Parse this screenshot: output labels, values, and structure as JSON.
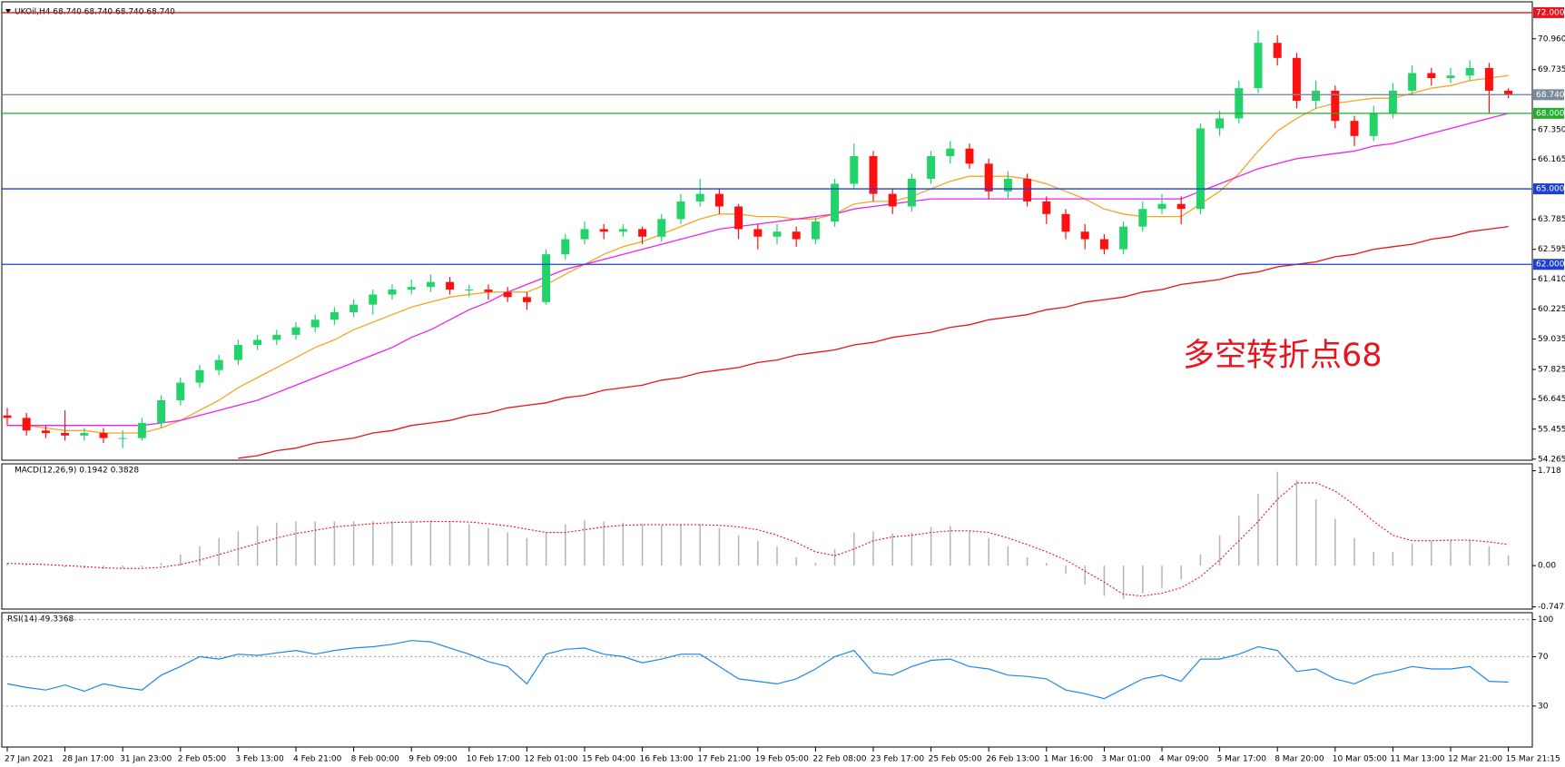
{
  "chart_data": [
    {
      "type": "candlestick",
      "title": "UKOil,H4  68.740 68.740 68.740 68.740",
      "annotation": "多空转折点68",
      "categories": [
        "27 Jan 2021",
        null,
        null,
        "28 Jan 17:00",
        null,
        null,
        "31 Jan 23:00",
        null,
        null,
        "2 Feb 05:00",
        null,
        null,
        "3 Feb 13:00",
        null,
        null,
        "4 Feb 21:00",
        null,
        null,
        "8 Feb 00:00",
        null,
        null,
        "9 Feb 09:00",
        null,
        null,
        "10 Feb 17:00",
        null,
        null,
        "12 Feb 01:00",
        null,
        null,
        "15 Feb 04:00",
        null,
        null,
        "16 Feb 13:00",
        null,
        null,
        "17 Feb 21:00",
        null,
        null,
        "19 Feb 05:00",
        null,
        null,
        "22 Feb 08:00",
        null,
        null,
        "23 Feb 17:00",
        null,
        null,
        "25 Feb 05:00",
        null,
        null,
        "26 Feb 13:00",
        null,
        null,
        "1 Mar 16:00",
        null,
        null,
        "3 Mar 01:00",
        null,
        null,
        "4 Mar 09:00",
        null,
        null,
        "5 Mar 17:00",
        null,
        null,
        "8 Mar 20:00",
        null,
        null,
        "10 Mar 05:00",
        null,
        null,
        "11 Mar 13:00",
        null,
        null,
        "12 Mar 21:00",
        null,
        null,
        "15 Mar 21:15"
      ],
      "open": [
        56.0,
        55.9,
        55.4,
        55.3,
        55.2,
        55.3,
        55.1,
        55.1,
        55.7,
        56.6,
        57.3,
        57.8,
        58.2,
        58.8,
        59.0,
        59.2,
        59.5,
        59.8,
        60.1,
        60.4,
        60.8,
        61.0,
        61.1,
        61.3,
        61.0,
        61.0,
        60.9,
        60.7,
        60.5,
        62.4,
        63.0,
        63.4,
        63.3,
        63.4,
        63.1,
        63.8,
        64.5,
        64.8,
        64.3,
        63.4,
        63.1,
        63.3,
        63.0,
        63.7,
        65.2,
        66.3,
        64.8,
        64.3,
        65.4,
        66.3,
        66.6,
        66.0,
        64.9,
        65.4,
        64.5,
        64.0,
        63.3,
        63.0,
        62.6,
        63.5,
        64.2,
        64.4,
        64.2,
        67.4,
        67.8,
        69.0,
        70.8,
        70.2,
        68.5,
        68.9,
        67.7,
        67.1,
        68.0,
        68.9,
        69.6,
        69.4,
        69.5,
        69.8,
        68.9
      ],
      "high": [
        56.3,
        56.1,
        55.6,
        56.2,
        55.5,
        55.5,
        55.4,
        55.9,
        56.8,
        57.5,
        58.0,
        58.4,
        59.0,
        59.2,
        59.4,
        59.7,
        60.0,
        60.3,
        60.6,
        61.0,
        61.2,
        61.4,
        61.6,
        61.5,
        61.2,
        61.2,
        61.1,
        60.9,
        62.6,
        63.2,
        63.7,
        63.6,
        63.6,
        63.5,
        64.0,
        64.8,
        65.4,
        65.0,
        64.4,
        63.6,
        63.6,
        63.5,
        63.9,
        65.4,
        66.8,
        66.5,
        65.0,
        65.6,
        66.5,
        66.9,
        66.8,
        66.2,
        65.7,
        65.6,
        64.7,
        64.2,
        63.6,
        63.2,
        63.7,
        64.5,
        64.8,
        64.7,
        67.6,
        68.1,
        69.3,
        71.3,
        71.1,
        70.4,
        69.3,
        69.1,
        67.9,
        68.3,
        69.2,
        69.9,
        69.8,
        69.8,
        70.1,
        70.0,
        69.0
      ],
      "low": [
        55.6,
        55.2,
        55.1,
        55.0,
        55.0,
        54.9,
        54.7,
        55.0,
        55.5,
        56.4,
        57.1,
        57.6,
        58.0,
        58.6,
        58.8,
        59.0,
        59.3,
        59.6,
        59.9,
        60.0,
        60.6,
        60.8,
        60.9,
        60.8,
        60.7,
        60.6,
        60.5,
        60.2,
        60.4,
        62.2,
        62.8,
        63.0,
        63.1,
        62.8,
        62.9,
        63.6,
        64.3,
        64.0,
        63.0,
        62.6,
        62.8,
        62.7,
        62.8,
        63.5,
        65.0,
        64.5,
        64.0,
        64.1,
        65.2,
        66.0,
        65.8,
        64.6,
        64.6,
        64.3,
        63.6,
        63.0,
        62.6,
        62.4,
        62.4,
        63.3,
        64.0,
        63.6,
        64.0,
        67.1,
        67.6,
        68.8,
        69.9,
        68.2,
        68.2,
        67.4,
        66.7,
        66.9,
        67.8,
        68.7,
        69.1,
        69.2,
        69.3,
        68.0,
        68.6
      ],
      "close": [
        55.9,
        55.4,
        55.3,
        55.2,
        55.3,
        55.1,
        55.1,
        55.7,
        56.6,
        57.3,
        57.8,
        58.2,
        58.8,
        59.0,
        59.2,
        59.5,
        59.8,
        60.1,
        60.4,
        60.8,
        61.0,
        61.1,
        61.3,
        61.0,
        61.0,
        60.9,
        60.7,
        60.5,
        62.4,
        63.0,
        63.4,
        63.3,
        63.4,
        63.1,
        63.8,
        64.5,
        64.8,
        64.3,
        63.4,
        63.1,
        63.3,
        63.0,
        63.7,
        65.2,
        66.3,
        64.8,
        64.3,
        65.4,
        66.3,
        66.6,
        66.0,
        64.9,
        65.4,
        64.5,
        64.0,
        63.3,
        63.0,
        62.6,
        63.5,
        64.2,
        64.4,
        64.2,
        67.4,
        67.8,
        69.0,
        70.8,
        70.2,
        68.5,
        68.9,
        67.7,
        67.1,
        68.0,
        68.9,
        69.6,
        69.4,
        69.5,
        69.8,
        68.9,
        68.74
      ],
      "up_color": "#22d36a",
      "down_color": "#ff1010",
      "series": [
        {
          "color": "#f5a623",
          "values": [
            55.6,
            55.6,
            55.5,
            55.4,
            55.4,
            55.3,
            55.3,
            55.3,
            55.5,
            55.8,
            56.2,
            56.6,
            57.1,
            57.5,
            57.9,
            58.3,
            58.7,
            59.0,
            59.4,
            59.7,
            60.0,
            60.3,
            60.5,
            60.7,
            60.8,
            60.9,
            60.9,
            60.9,
            61.2,
            61.6,
            62.0,
            62.4,
            62.7,
            62.9,
            63.2,
            63.5,
            63.8,
            64.0,
            64.0,
            63.9,
            63.9,
            63.8,
            63.8,
            64.0,
            64.4,
            64.5,
            64.5,
            64.7,
            65.0,
            65.3,
            65.5,
            65.5,
            65.5,
            65.4,
            65.2,
            64.9,
            64.6,
            64.2,
            64.0,
            63.9,
            63.9,
            63.9,
            64.4,
            64.9,
            65.6,
            66.5,
            67.3,
            67.8,
            68.2,
            68.4,
            68.5,
            68.6,
            68.6,
            68.8,
            69.0,
            69.1,
            69.3,
            69.4,
            69.5
          ]
        },
        {
          "color": "#ee22ee",
          "values": [
            55.6,
            55.6,
            55.6,
            55.6,
            55.6,
            55.6,
            55.6,
            55.6,
            55.7,
            55.8,
            56.0,
            56.2,
            56.4,
            56.6,
            56.9,
            57.2,
            57.5,
            57.8,
            58.1,
            58.4,
            58.7,
            59.1,
            59.4,
            59.8,
            60.2,
            60.5,
            60.9,
            61.2,
            61.5,
            61.8,
            62.0,
            62.2,
            62.4,
            62.6,
            62.8,
            63.0,
            63.2,
            63.4,
            63.5,
            63.6,
            63.7,
            63.8,
            63.9,
            64.0,
            64.2,
            64.3,
            64.4,
            64.5,
            64.6,
            64.6,
            64.6,
            64.6,
            64.6,
            64.6,
            64.6,
            64.6,
            64.6,
            64.6,
            64.6,
            64.6,
            64.6,
            64.6,
            64.9,
            65.2,
            65.5,
            65.8,
            66.0,
            66.2,
            66.3,
            66.4,
            66.5,
            66.7,
            66.8,
            67.0,
            67.2,
            67.4,
            67.6,
            67.8,
            68.0
          ]
        },
        {
          "color": "#e8141e",
          "values": [
            null,
            null,
            null,
            null,
            null,
            null,
            null,
            null,
            null,
            null,
            null,
            null,
            54.3,
            54.4,
            54.6,
            54.7,
            54.9,
            55.0,
            55.1,
            55.3,
            55.4,
            55.6,
            55.7,
            55.8,
            56.0,
            56.1,
            56.3,
            56.4,
            56.5,
            56.7,
            56.8,
            57.0,
            57.1,
            57.2,
            57.4,
            57.5,
            57.7,
            57.8,
            57.9,
            58.1,
            58.2,
            58.4,
            58.5,
            58.6,
            58.8,
            58.9,
            59.1,
            59.2,
            59.3,
            59.5,
            59.6,
            59.8,
            59.9,
            60.0,
            60.2,
            60.3,
            60.5,
            60.6,
            60.7,
            60.9,
            61.0,
            61.2,
            61.3,
            61.4,
            61.6,
            61.7,
            61.9,
            62.0,
            62.1,
            62.3,
            62.4,
            62.6,
            62.7,
            62.8,
            63.0,
            63.1,
            63.3,
            63.4,
            63.5
          ]
        }
      ],
      "levels": [
        {
          "value": 72,
          "label": "72.000",
          "color": "#e8141e"
        },
        {
          "value": 68.74,
          "label": "68.740",
          "color": "#7a8a9a"
        },
        {
          "value": 68,
          "label": "68.000",
          "color": "#1fae2a"
        },
        {
          "value": 65,
          "label": "65.000",
          "color": "#1e3fd8"
        },
        {
          "value": 62,
          "label": "62.000",
          "color": "#1e3fd8"
        }
      ],
      "ylim": [
        54.22,
        72.43
      ],
      "yticks": [
        {
          "value": 70.96,
          "label": "70.960"
        },
        {
          "value": 69.735,
          "label": "69.735"
        },
        {
          "value": 67.35,
          "label": "67.350"
        },
        {
          "value": 66.165,
          "label": "66.165"
        },
        {
          "value": 63.785,
          "label": "63.785"
        },
        {
          "value": 62.595,
          "label": "62.595"
        },
        {
          "value": 61.41,
          "label": "61.410"
        },
        {
          "value": 60.225,
          "label": "60.225"
        },
        {
          "value": 59.035,
          "label": "59.035"
        },
        {
          "value": 57.825,
          "label": "57.825"
        },
        {
          "value": 56.645,
          "label": "56.645"
        },
        {
          "value": 55.455,
          "label": "55.455"
        },
        {
          "value": 54.265,
          "label": "54.265"
        }
      ]
    },
    {
      "type": "macd",
      "title": "MACD(12,26,9) 0.1942 0.3828",
      "histogram": {
        "color": "#b4b4b4",
        "values": [
          0.05,
          0.03,
          0.0,
          -0.03,
          -0.05,
          -0.06,
          -0.05,
          -0.03,
          0.05,
          0.2,
          0.35,
          0.5,
          0.62,
          0.72,
          0.78,
          0.8,
          0.8,
          0.8,
          0.8,
          0.8,
          0.8,
          0.82,
          0.82,
          0.8,
          0.75,
          0.68,
          0.6,
          0.5,
          0.6,
          0.75,
          0.82,
          0.8,
          0.78,
          0.75,
          0.73,
          0.75,
          0.75,
          0.68,
          0.55,
          0.45,
          0.35,
          0.15,
          0.05,
          0.3,
          0.6,
          0.62,
          0.58,
          0.6,
          0.7,
          0.72,
          0.62,
          0.5,
          0.35,
          0.15,
          0.05,
          -0.15,
          -0.35,
          -0.55,
          -0.6,
          -0.5,
          -0.4,
          -0.25,
          0.2,
          0.55,
          0.9,
          1.3,
          1.7,
          1.55,
          1.2,
          0.85,
          0.5,
          0.25,
          0.25,
          0.4,
          0.45,
          0.45,
          0.45,
          0.35,
          0.19
        ]
      },
      "signal": {
        "color": "#e8141e",
        "values": [
          0.04,
          0.03,
          0.02,
          0.0,
          -0.02,
          -0.04,
          -0.05,
          -0.05,
          -0.03,
          0.02,
          0.1,
          0.2,
          0.3,
          0.4,
          0.5,
          0.58,
          0.64,
          0.7,
          0.73,
          0.76,
          0.78,
          0.79,
          0.8,
          0.8,
          0.79,
          0.76,
          0.72,
          0.66,
          0.6,
          0.6,
          0.65,
          0.7,
          0.73,
          0.74,
          0.74,
          0.74,
          0.74,
          0.73,
          0.7,
          0.65,
          0.55,
          0.42,
          0.25,
          0.18,
          0.3,
          0.45,
          0.52,
          0.55,
          0.6,
          0.63,
          0.63,
          0.6,
          0.5,
          0.38,
          0.25,
          0.1,
          -0.1,
          -0.3,
          -0.52,
          -0.55,
          -0.5,
          -0.4,
          -0.2,
          0.1,
          0.45,
          0.8,
          1.2,
          1.5,
          1.5,
          1.35,
          1.1,
          0.8,
          0.55,
          0.45,
          0.45,
          0.46,
          0.46,
          0.43,
          0.38
        ]
      },
      "ylim": [
        -0.787,
        1.843
      ],
      "yticks": [
        1.718,
        {
          "value": 0,
          "label": "0.00"
        },
        -0.7475
      ]
    },
    {
      "type": "line",
      "title": "RSI(14) 49.3368",
      "color": "#1e88e5",
      "values": [
        48,
        45,
        43,
        47,
        42,
        48,
        45,
        43,
        55,
        62,
        70,
        68,
        72,
        71,
        73,
        75,
        72,
        75,
        77,
        78,
        80,
        83,
        82,
        77,
        72,
        66,
        62,
        48,
        72,
        76,
        77,
        72,
        70,
        65,
        68,
        72,
        72,
        62,
        52,
        50,
        48,
        52,
        60,
        70,
        75,
        57,
        55,
        62,
        67,
        68,
        62,
        60,
        55,
        54,
        52,
        43,
        40,
        36,
        44,
        52,
        55,
        50,
        68,
        68,
        72,
        78,
        75,
        58,
        60,
        52,
        48,
        55,
        58,
        62,
        60,
        60,
        62,
        50,
        49.3368
      ],
      "ylim": [
        -3.2,
        105.6
      ],
      "yticks": [
        100,
        70,
        30
      ],
      "grid": true
    }
  ]
}
